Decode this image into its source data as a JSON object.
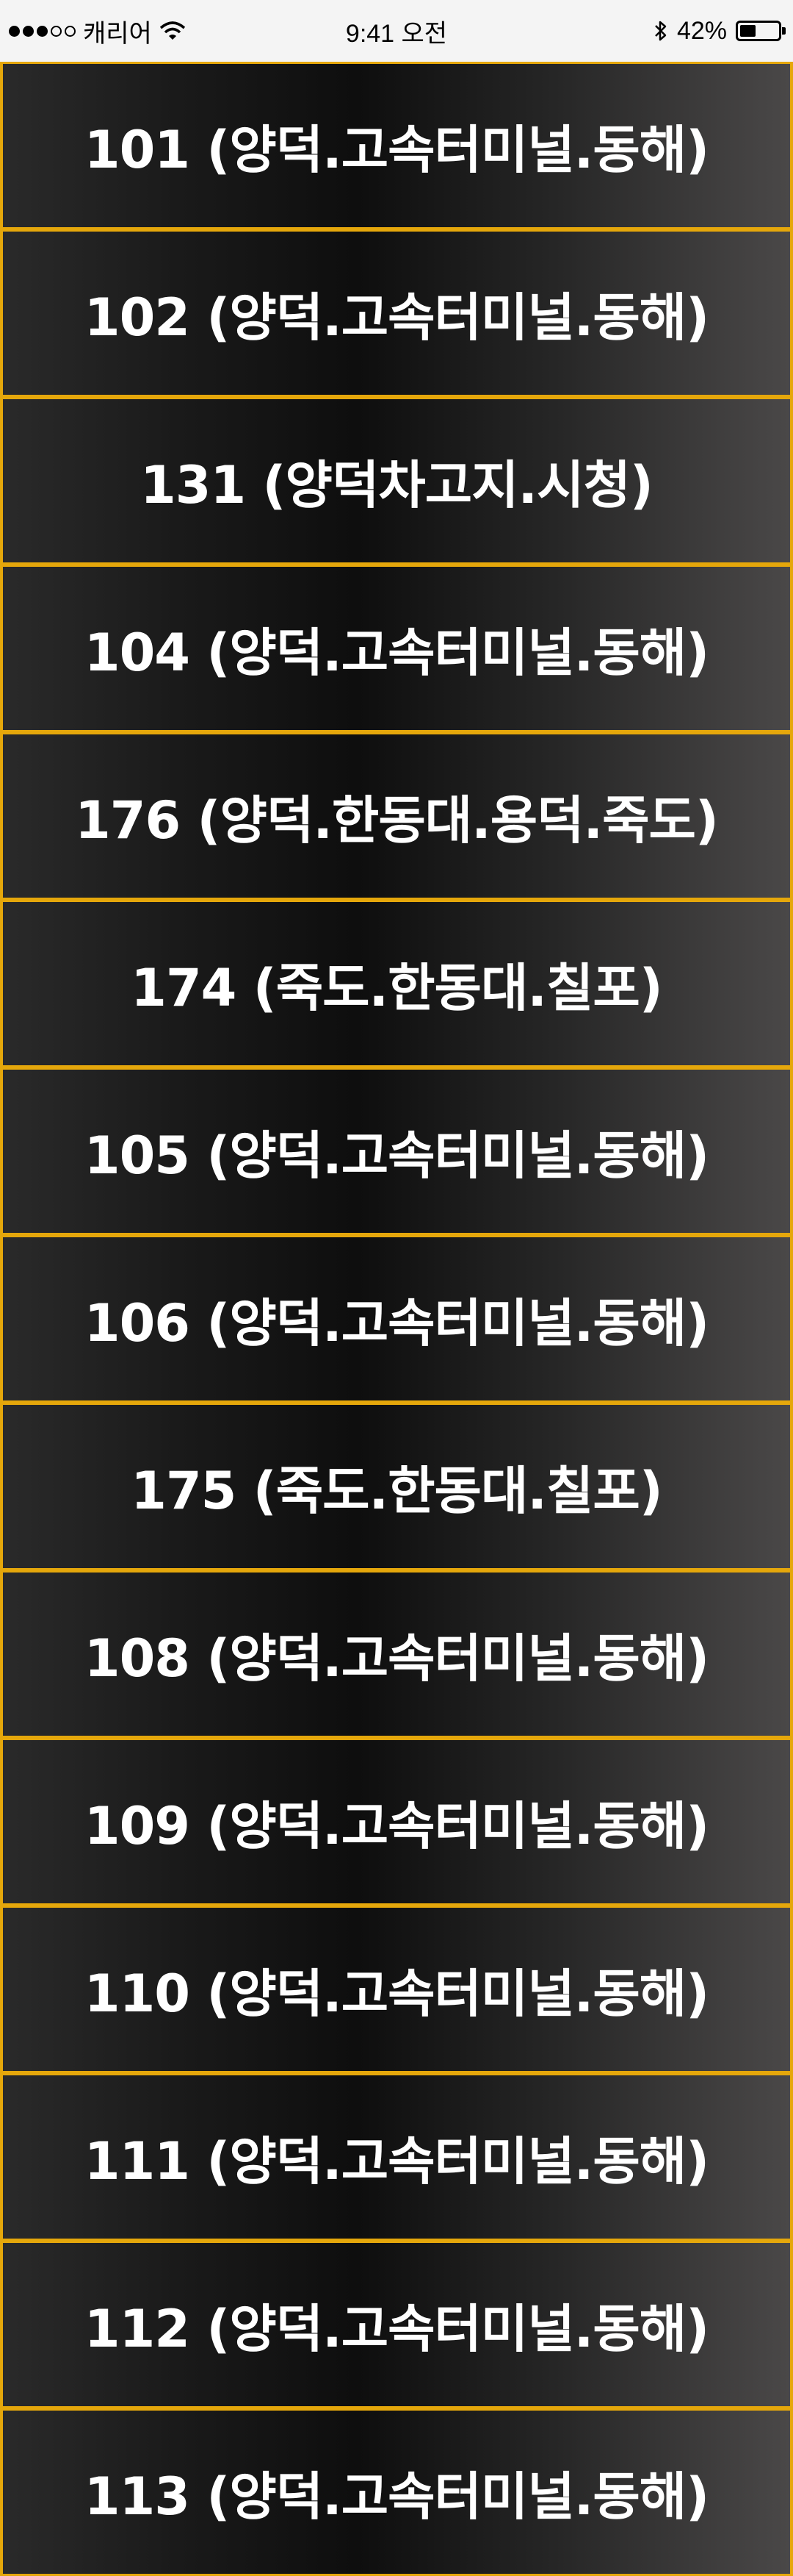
{
  "status_bar": {
    "carrier": "캐리어",
    "time": "9:41 오전",
    "battery_percent": "42%",
    "battery_level": 0.42
  },
  "routes": [
    "101 (양덕.고속터미널.동해)",
    "102 (양덕.고속터미널.동해)",
    "131 (양덕차고지.시청)",
    "104 (양덕.고속터미널.동해)",
    "176 (양덕.한동대.용덕.죽도)",
    "174 (죽도.한동대.칠포)",
    "105 (양덕.고속터미널.동해)",
    "106 (양덕.고속터미널.동해)",
    "175 (죽도.한동대.칠포)",
    "108 (양덕.고속터미널.동해)",
    "109 (양덕.고속터미널.동해)",
    "110 (양덕.고속터미널.동해)",
    "111 (양덕.고속터미널.동해)",
    "112 (양덕.고속터미널.동해)",
    "113 (양덕.고속터미널.동해)"
  ],
  "colors": {
    "border": "#e5a70b",
    "text": "#ffffff"
  }
}
